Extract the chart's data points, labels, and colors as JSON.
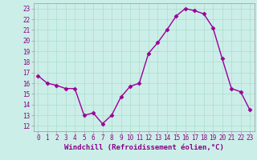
{
  "x": [
    0,
    1,
    2,
    3,
    4,
    5,
    6,
    7,
    8,
    9,
    10,
    11,
    12,
    13,
    14,
    15,
    16,
    17,
    18,
    19,
    20,
    21,
    22,
    23
  ],
  "y": [
    16.7,
    16.0,
    15.8,
    15.5,
    15.5,
    13.0,
    13.2,
    12.2,
    13.0,
    14.7,
    15.7,
    16.0,
    18.8,
    19.8,
    21.0,
    22.3,
    23.0,
    22.8,
    22.5,
    21.2,
    18.3,
    15.5,
    15.2,
    13.5
  ],
  "line_color": "#990099",
  "marker": "D",
  "marker_size": 2.5,
  "line_width": 1.0,
  "xlabel": "Windchill (Refroidissement éolien,°C)",
  "xlabel_fontsize": 6.5,
  "ylim": [
    11.5,
    23.5
  ],
  "yticks": [
    12,
    13,
    14,
    15,
    16,
    17,
    18,
    19,
    20,
    21,
    22,
    23
  ],
  "xticks": [
    0,
    1,
    2,
    3,
    4,
    5,
    6,
    7,
    8,
    9,
    10,
    11,
    12,
    13,
    14,
    15,
    16,
    17,
    18,
    19,
    20,
    21,
    22,
    23
  ],
  "grid_color": "#aaddcc",
  "bg_color": "#cceee8",
  "tick_fontsize": 5.5,
  "fig_bg": "#cceee8",
  "tick_color": "#880088",
  "xlabel_color": "#880088"
}
